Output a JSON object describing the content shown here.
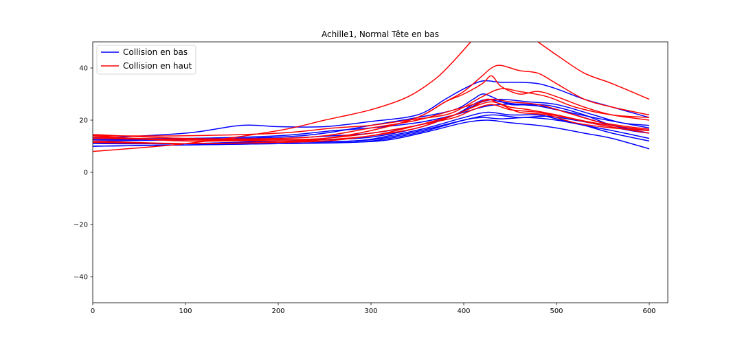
{
  "chart_data": {
    "type": "line",
    "title": "Achille1, Normal Tête en bas",
    "xlabel": "",
    "ylabel": "",
    "xlim": [
      0,
      620
    ],
    "ylim": [
      -50,
      50
    ],
    "xticks": [
      0,
      100,
      200,
      300,
      400,
      500,
      600
    ],
    "yticks": [
      -40,
      -20,
      0,
      20,
      40
    ],
    "ytick_labels": [
      "−40",
      "−20",
      "0",
      "20",
      "40"
    ],
    "grid": false,
    "legend": {
      "placement": "top-left",
      "entries": [
        {
          "label": "Collision en bas",
          "color": "#0000ff"
        },
        {
          "label": "Collision en haut",
          "color": "#ff0000"
        }
      ]
    },
    "series": [
      {
        "group": "Collision en bas",
        "color": "#0000ff",
        "x": [
          0,
          100,
          160,
          200,
          250,
          300,
          350,
          380,
          400,
          420,
          440,
          460,
          480,
          500,
          530,
          560,
          600
        ],
        "y": [
          13,
          15,
          18,
          17.5,
          17.5,
          19.5,
          22,
          28,
          32,
          35,
          34.5,
          34.5,
          34,
          32,
          28,
          25,
          21
        ]
      },
      {
        "group": "Collision en bas",
        "color": "#0000ff",
        "x": [
          0,
          100,
          200,
          250,
          300,
          350,
          390,
          410,
          420,
          430,
          450,
          480,
          500,
          530,
          560,
          600
        ],
        "y": [
          12,
          12.5,
          13.5,
          15,
          18,
          21,
          24,
          28,
          30,
          29,
          26,
          26,
          25,
          22,
          18,
          15
        ]
      },
      {
        "group": "Collision en bas",
        "color": "#0000ff",
        "x": [
          0,
          100,
          200,
          250,
          300,
          350,
          390,
          410,
          425,
          440,
          460,
          490,
          520,
          560,
          600
        ],
        "y": [
          11,
          11,
          12,
          12.5,
          13.5,
          17,
          22,
          26,
          28,
          27,
          26,
          25,
          22,
          18,
          16
        ]
      },
      {
        "group": "Collision en bas",
        "color": "#0000ff",
        "x": [
          0,
          100,
          200,
          280,
          320,
          360,
          400,
          420,
          440,
          470,
          500,
          530,
          560,
          600
        ],
        "y": [
          10,
          10.5,
          11,
          11.5,
          13,
          16,
          20,
          21,
          20.5,
          21,
          20,
          18,
          16,
          13
        ]
      },
      {
        "group": "Collision en bas",
        "color": "#0000ff",
        "x": [
          0,
          100,
          200,
          280,
          320,
          360,
          400,
          425,
          450,
          480,
          500,
          530,
          560,
          600
        ],
        "y": [
          11.5,
          11,
          11.5,
          12,
          14,
          17,
          21,
          23,
          22,
          22,
          20.5,
          18,
          15,
          12
        ]
      },
      {
        "group": "Collision en bas",
        "color": "#0000ff",
        "x": [
          0,
          100,
          200,
          280,
          320,
          360,
          400,
          425,
          450,
          480,
          500,
          530,
          560,
          600
        ],
        "y": [
          10,
          10.5,
          11,
          11.5,
          12.5,
          15.5,
          19,
          20,
          19,
          18,
          17,
          15,
          13,
          9
        ]
      },
      {
        "group": "Collision en bas",
        "color": "#0000ff",
        "x": [
          0,
          100,
          200,
          260,
          300,
          350,
          390,
          420,
          440,
          470,
          500,
          540,
          570,
          600
        ],
        "y": [
          13,
          13,
          14,
          16,
          17,
          19,
          22,
          25,
          26,
          26,
          24,
          21,
          19,
          17
        ]
      },
      {
        "group": "Collision en bas",
        "color": "#0000ff",
        "x": [
          0,
          100,
          200,
          260,
          300,
          350,
          390,
          420,
          440,
          470,
          500,
          540,
          570,
          600
        ],
        "y": [
          12.5,
          12.5,
          13,
          14,
          15,
          18,
          22,
          27,
          28,
          27,
          26,
          22,
          19,
          18
        ]
      },
      {
        "group": "Collision en bas",
        "color": "#0000ff",
        "x": [
          0,
          100,
          200,
          280,
          320,
          360,
          400,
          430,
          460,
          490,
          520,
          550,
          580,
          600
        ],
        "y": [
          11,
          11,
          11.5,
          12,
          13.5,
          16.5,
          20,
          22,
          21,
          21.5,
          20,
          18,
          16,
          15
        ]
      },
      {
        "group": "Collision en haut",
        "color": "#ff0000",
        "x": [
          0,
          100,
          200,
          250,
          300,
          340,
          370,
          390,
          410,
          420,
          440,
          460,
          480,
          500,
          530,
          560,
          600
        ],
        "y": [
          8,
          11,
          16,
          20,
          24,
          29,
          36,
          43,
          51,
          55,
          55,
          55,
          50,
          45,
          38,
          34,
          28
        ]
      },
      {
        "group": "Collision en haut",
        "color": "#ff0000",
        "x": [
          0,
          100,
          200,
          250,
          300,
          350,
          380,
          400,
          420,
          430,
          440,
          460,
          480,
          500,
          530,
          560,
          600
        ],
        "y": [
          14,
          12,
          12.5,
          13,
          16,
          21,
          27,
          31,
          37,
          40,
          41,
          39,
          38,
          34,
          28,
          25,
          22
        ]
      },
      {
        "group": "Collision en haut",
        "color": "#ff0000",
        "x": [
          0,
          100,
          200,
          250,
          300,
          350,
          380,
          400,
          420,
          430,
          440,
          460,
          480,
          500,
          530,
          560,
          600
        ],
        "y": [
          13.5,
          12.5,
          12,
          13,
          16,
          21,
          27,
          30,
          34,
          37,
          33,
          30,
          31,
          29,
          25,
          22,
          20
        ]
      },
      {
        "group": "Collision en haut",
        "color": "#ff0000",
        "x": [
          0,
          100,
          200,
          250,
          300,
          350,
          390,
          410,
          425,
          440,
          460,
          490,
          520,
          560,
          600
        ],
        "y": [
          12,
          11,
          11.5,
          12.5,
          14,
          18,
          22,
          25,
          28,
          26,
          23,
          22,
          19,
          17,
          16
        ]
      },
      {
        "group": "Collision en haut",
        "color": "#ff0000",
        "x": [
          0,
          100,
          200,
          250,
          300,
          350,
          390,
          410,
          430,
          450,
          470,
          500,
          540,
          600
        ],
        "y": [
          11.5,
          11,
          11.5,
          12,
          14,
          17,
          22,
          25,
          27,
          25,
          24,
          22,
          19,
          16
        ]
      },
      {
        "group": "Collision en haut",
        "color": "#ff0000",
        "x": [
          0,
          100,
          200,
          250,
          300,
          350,
          390,
          410,
          430,
          450,
          480,
          510,
          550,
          600
        ],
        "y": [
          14.5,
          13,
          13,
          14,
          17,
          20,
          24,
          26,
          28,
          27,
          26,
          23,
          19,
          16.5
        ]
      },
      {
        "group": "Collision en haut",
        "color": "#ff0000",
        "x": [
          0,
          100,
          200,
          250,
          300,
          350,
          390,
          410,
          430,
          450,
          480,
          510,
          550,
          600
        ],
        "y": [
          13,
          12.5,
          12.5,
          13,
          15,
          18,
          21,
          24,
          26,
          24,
          23,
          21,
          18,
          15
        ]
      },
      {
        "group": "Collision en haut",
        "color": "#ff0000",
        "x": [
          0,
          100,
          200,
          260,
          300,
          340,
          380,
          400,
          420,
          440,
          460,
          490,
          520,
          560,
          600
        ],
        "y": [
          14,
          14,
          15,
          17,
          18,
          20,
          22,
          25,
          29,
          32,
          31,
          29,
          25,
          22,
          21
        ]
      }
    ]
  }
}
